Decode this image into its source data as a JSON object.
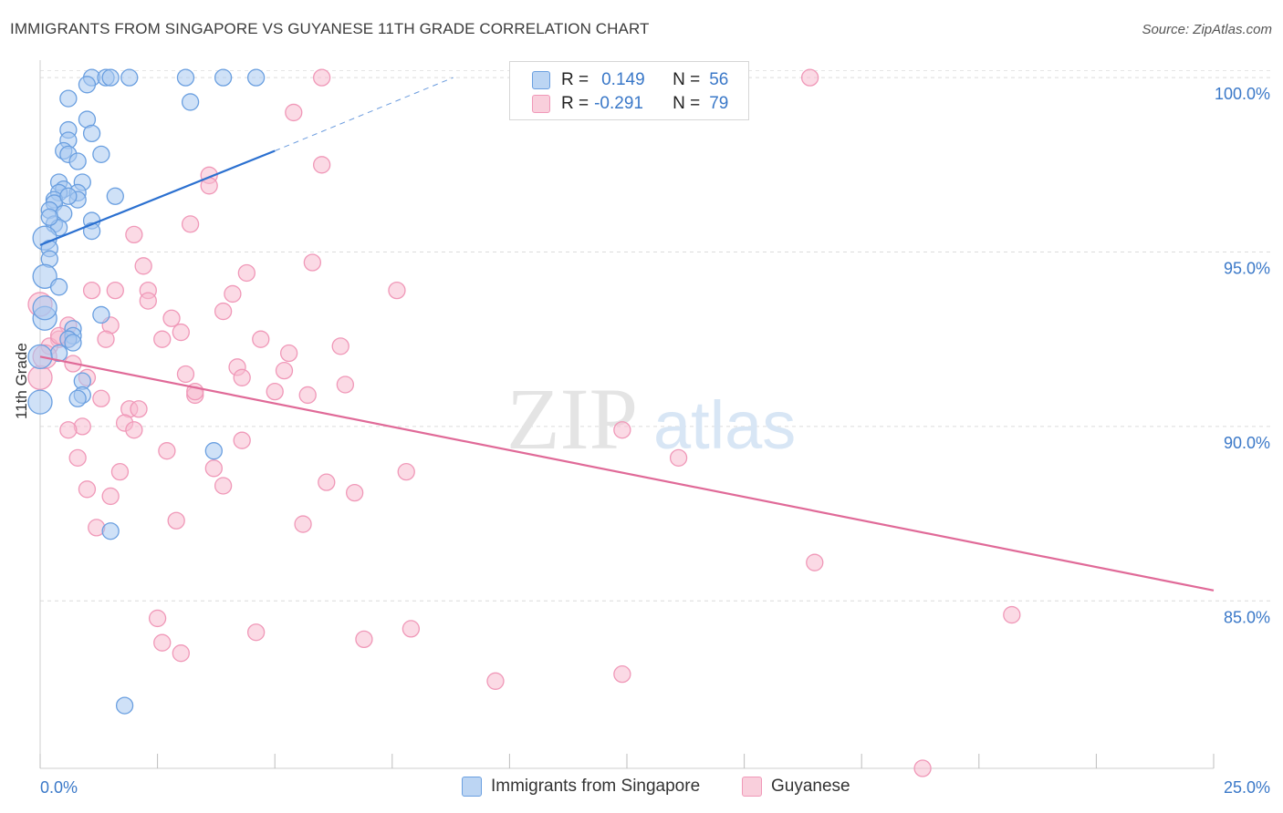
{
  "title": "IMMIGRANTS FROM SINGAPORE VS GUYANESE 11TH GRADE CORRELATION CHART",
  "source": "Source: ZipAtlas.com",
  "watermark": {
    "zip": "ZIP",
    "atlas": "atlas"
  },
  "legend": {
    "r_label": "R =",
    "n_label": "N =",
    "rows": [
      {
        "r": "0.149",
        "n": "56",
        "color": "#a8c8f0"
      },
      {
        "r": "-0.291",
        "n": "79",
        "color": "#f8bcd0"
      }
    ]
  },
  "bottom_legend": [
    "Immigrants from Singapore",
    "Guyanese"
  ],
  "chart_data": {
    "type": "scatter",
    "title": "IMMIGRANTS FROM SINGAPORE VS GUYANESE 11TH GRADE CORRELATION CHART",
    "xlabel": "",
    "ylabel": "11th Grade",
    "xlim": [
      0,
      25
    ],
    "ylim": [
      80.2,
      100.5
    ],
    "x_tick_labels": [
      "0.0%",
      "25.0%"
    ],
    "y_ticks": [
      85,
      90,
      95,
      100
    ],
    "y_tick_labels": [
      "85.0%",
      "90.0%",
      "95.0%",
      "100.0%"
    ],
    "grid": true,
    "series": [
      {
        "name": "Immigrants from Singapore",
        "color": "#6a9fe0",
        "fill": "#a8c8f0",
        "line_color": "#2b70d0",
        "r": 0.149,
        "n": 56,
        "trend": {
          "x": [
            0,
            5
          ],
          "y": [
            95.2,
            97.9
          ],
          "dashed_to": [
            8.8,
            100.0
          ]
        },
        "points": [
          [
            1.1,
            100.0
          ],
          [
            1.4,
            100.0
          ],
          [
            1.5,
            100.0
          ],
          [
            1.9,
            100.0
          ],
          [
            3.1,
            100.0
          ],
          [
            3.9,
            100.0
          ],
          [
            4.6,
            100.0
          ],
          [
            1.0,
            99.8
          ],
          [
            0.6,
            99.4
          ],
          [
            3.2,
            99.3
          ],
          [
            1.0,
            98.8
          ],
          [
            0.6,
            98.5
          ],
          [
            1.1,
            98.4
          ],
          [
            0.6,
            98.2
          ],
          [
            0.5,
            97.9
          ],
          [
            0.6,
            97.8
          ],
          [
            1.3,
            97.8
          ],
          [
            0.8,
            97.6
          ],
          [
            0.4,
            97.0
          ],
          [
            0.9,
            97.0
          ],
          [
            0.5,
            96.8
          ],
          [
            0.4,
            96.7
          ],
          [
            0.8,
            96.7
          ],
          [
            1.6,
            96.6
          ],
          [
            0.3,
            96.5
          ],
          [
            0.3,
            96.4
          ],
          [
            0.8,
            96.5
          ],
          [
            0.2,
            96.2
          ],
          [
            0.5,
            96.1
          ],
          [
            1.1,
            95.9
          ],
          [
            0.3,
            95.8
          ],
          [
            0.4,
            95.7
          ],
          [
            1.1,
            95.6
          ],
          [
            0.1,
            95.4
          ],
          [
            0.2,
            95.1
          ],
          [
            0.2,
            94.8
          ],
          [
            0.1,
            94.3
          ],
          [
            0.4,
            94.0
          ],
          [
            1.3,
            93.2
          ],
          [
            0.1,
            93.1
          ],
          [
            0.7,
            92.8
          ],
          [
            0.7,
            92.6
          ],
          [
            0.6,
            92.5
          ],
          [
            0.7,
            92.4
          ],
          [
            0.4,
            92.1
          ],
          [
            0.0,
            92.0
          ],
          [
            0.9,
            91.3
          ],
          [
            0.9,
            90.9
          ],
          [
            0.8,
            90.8
          ],
          [
            0.0,
            90.7
          ],
          [
            3.7,
            89.3
          ],
          [
            1.5,
            87.0
          ],
          [
            1.8,
            82.0
          ],
          [
            0.1,
            93.4
          ],
          [
            0.6,
            96.6
          ],
          [
            0.2,
            96.0
          ]
        ]
      },
      {
        "name": "Guyanese",
        "color": "#f098b8",
        "fill": "#f8bcd0",
        "line_color": "#e06a98",
        "r": -0.291,
        "n": 79,
        "trend": {
          "x": [
            0,
            25
          ],
          "y": [
            92.0,
            85.3
          ]
        },
        "points": [
          [
            6.0,
            100.0
          ],
          [
            16.4,
            100.0
          ],
          [
            5.4,
            99.0
          ],
          [
            6.0,
            97.5
          ],
          [
            3.6,
            97.2
          ],
          [
            3.6,
            96.9
          ],
          [
            3.2,
            95.8
          ],
          [
            2.0,
            95.5
          ],
          [
            5.8,
            94.7
          ],
          [
            2.2,
            94.6
          ],
          [
            4.4,
            94.4
          ],
          [
            1.1,
            93.9
          ],
          [
            1.6,
            93.9
          ],
          [
            2.3,
            93.9
          ],
          [
            4.1,
            93.8
          ],
          [
            7.6,
            93.9
          ],
          [
            2.3,
            93.6
          ],
          [
            0.0,
            93.5
          ],
          [
            3.9,
            93.3
          ],
          [
            2.8,
            93.1
          ],
          [
            0.6,
            92.9
          ],
          [
            1.5,
            92.9
          ],
          [
            3.0,
            92.7
          ],
          [
            0.4,
            92.5
          ],
          [
            0.6,
            92.5
          ],
          [
            1.4,
            92.5
          ],
          [
            2.6,
            92.5
          ],
          [
            4.7,
            92.5
          ],
          [
            0.2,
            92.3
          ],
          [
            6.4,
            92.3
          ],
          [
            5.3,
            92.1
          ],
          [
            0.7,
            91.8
          ],
          [
            4.2,
            91.7
          ],
          [
            5.2,
            91.6
          ],
          [
            3.1,
            91.5
          ],
          [
            0.0,
            91.4
          ],
          [
            4.3,
            91.4
          ],
          [
            1.0,
            91.4
          ],
          [
            6.5,
            91.2
          ],
          [
            5.0,
            91.0
          ],
          [
            5.7,
            90.9
          ],
          [
            3.3,
            90.9
          ],
          [
            3.3,
            91.0
          ],
          [
            1.3,
            90.8
          ],
          [
            1.9,
            90.5
          ],
          [
            2.1,
            90.5
          ],
          [
            1.8,
            90.1
          ],
          [
            2.0,
            89.9
          ],
          [
            0.9,
            90.0
          ],
          [
            0.6,
            89.9
          ],
          [
            12.4,
            89.9
          ],
          [
            4.3,
            89.6
          ],
          [
            2.7,
            89.3
          ],
          [
            0.8,
            89.1
          ],
          [
            13.6,
            89.1
          ],
          [
            3.7,
            88.8
          ],
          [
            1.7,
            88.7
          ],
          [
            7.8,
            88.7
          ],
          [
            6.1,
            88.4
          ],
          [
            3.9,
            88.3
          ],
          [
            1.0,
            88.2
          ],
          [
            6.7,
            88.1
          ],
          [
            1.5,
            88.0
          ],
          [
            2.9,
            87.3
          ],
          [
            5.6,
            87.2
          ],
          [
            1.2,
            87.1
          ],
          [
            16.5,
            86.1
          ],
          [
            20.7,
            84.6
          ],
          [
            2.5,
            84.5
          ],
          [
            7.9,
            84.2
          ],
          [
            4.6,
            84.1
          ],
          [
            6.9,
            83.9
          ],
          [
            2.6,
            83.8
          ],
          [
            3.0,
            83.5
          ],
          [
            12.4,
            82.9
          ],
          [
            9.7,
            82.7
          ],
          [
            18.8,
            80.2
          ],
          [
            0.1,
            92.0
          ],
          [
            0.4,
            92.6
          ]
        ]
      }
    ]
  }
}
